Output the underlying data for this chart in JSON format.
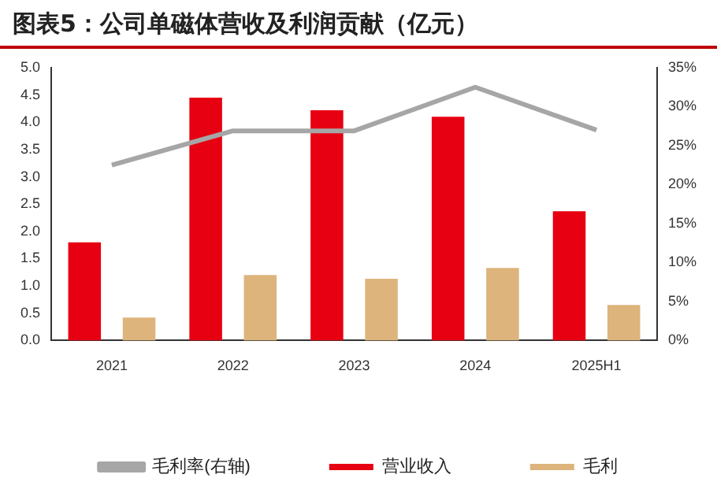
{
  "chart_data": {
    "type": "bar",
    "title": "图表5：公司单磁体营收及利润贡献（亿元）",
    "categories": [
      "2021",
      "2022",
      "2023",
      "2024",
      "2025H1"
    ],
    "series": [
      {
        "name": "营业收入",
        "color": "#e60012",
        "values": [
          1.8,
          4.45,
          4.22,
          4.1,
          2.37
        ]
      },
      {
        "name": "毛利",
        "color": "#dcb47c",
        "values": [
          0.42,
          1.2,
          1.13,
          1.33,
          0.65
        ]
      },
      {
        "name": "毛利率(右轴)",
        "type": "line",
        "axis": "y2",
        "color": "#a6a6a6",
        "values": [
          22.5,
          26.9,
          26.9,
          32.5,
          27.0
        ]
      }
    ],
    "ylim": [
      0,
      5
    ],
    "yticks": [
      {
        "value": 0,
        "label": "0.0"
      },
      {
        "value": 0.5,
        "label": "0.5"
      },
      {
        "value": 1,
        "label": "1.0"
      },
      {
        "value": 1.5,
        "label": "1.5"
      },
      {
        "value": 2,
        "label": "2.0"
      },
      {
        "value": 2.5,
        "label": "2.5"
      },
      {
        "value": 3,
        "label": "3.0"
      },
      {
        "value": 3.5,
        "label": "3.5"
      },
      {
        "value": 4,
        "label": "4.0"
      },
      {
        "value": 4.5,
        "label": "4.5"
      },
      {
        "value": 5,
        "label": "5.0"
      }
    ],
    "y2lim": [
      0,
      35
    ],
    "y2ticks": [
      {
        "value": 0,
        "label": "0%"
      },
      {
        "value": 5,
        "label": "5%"
      },
      {
        "value": 10,
        "label": "10%"
      },
      {
        "value": 15,
        "label": "15%"
      },
      {
        "value": 20,
        "label": "20%"
      },
      {
        "value": 25,
        "label": "25%"
      },
      {
        "value": 30,
        "label": "30%"
      },
      {
        "value": 35,
        "label": "35%"
      }
    ],
    "grid": false,
    "legend": "bottom",
    "marker": "none"
  }
}
